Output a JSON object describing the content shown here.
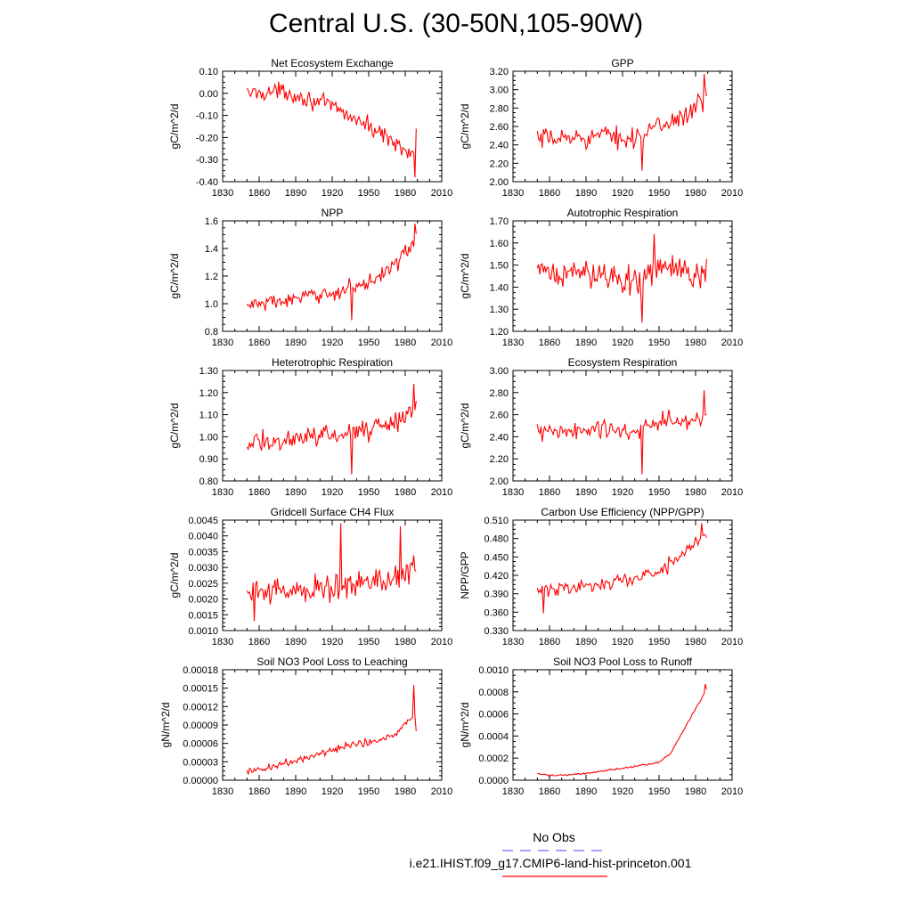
{
  "title": "Central U.S. (30-50N,105-90W)",
  "colors": {
    "model": "#ff0000",
    "obs": "#6b6bff",
    "axis": "#000000"
  },
  "legend": {
    "obs_label": "No Obs",
    "model_label": "i.e21.IHIST.f09_g17.CMIP6-land-hist-princeton.001"
  },
  "x_axis": {
    "range": [
      1830,
      2010
    ],
    "ticks": [
      "1830",
      "1860",
      "1890",
      "1920",
      "1950",
      "1980",
      "2010"
    ],
    "data_start": 1850,
    "data_end": 1989
  },
  "chart_data": [
    {
      "id": "nee",
      "type": "line",
      "title": "Net Ecosystem Exchange",
      "ylabel": "gC/m^2/d",
      "ylim": [
        -0.4,
        0.1
      ],
      "yticks": [
        "-0.40",
        "-0.30",
        "-0.20",
        "-0.10",
        "0.00",
        "0.10"
      ],
      "trend": [
        [
          1850,
          0.0
        ],
        [
          1880,
          0.01
        ],
        [
          1920,
          -0.06
        ],
        [
          1950,
          -0.15
        ],
        [
          1975,
          -0.23
        ],
        [
          1989,
          -0.3
        ]
      ],
      "amplitude": 0.04,
      "extremes": [
        [
          1988,
          -0.38
        ],
        [
          1989,
          -0.16
        ]
      ]
    },
    {
      "id": "gpp",
      "type": "line",
      "title": "GPP",
      "ylabel": "gC/m^2/d",
      "ylim": [
        2.0,
        3.2
      ],
      "yticks": [
        "2.00",
        "2.20",
        "2.40",
        "2.60",
        "2.80",
        "3.00",
        "3.20"
      ],
      "trend": [
        [
          1850,
          2.45
        ],
        [
          1900,
          2.5
        ],
        [
          1930,
          2.48
        ],
        [
          1950,
          2.6
        ],
        [
          1975,
          2.75
        ],
        [
          1989,
          2.9
        ]
      ],
      "amplitude": 0.12,
      "extremes": [
        [
          1936,
          2.12
        ],
        [
          1987,
          3.17
        ]
      ]
    },
    {
      "id": "npp",
      "type": "line",
      "title": "NPP",
      "ylabel": "gC/m^2/d",
      "ylim": [
        0.8,
        1.6
      ],
      "yticks": [
        "0.8",
        "1.0",
        "1.2",
        "1.4",
        "1.6"
      ],
      "trend": [
        [
          1850,
          0.99
        ],
        [
          1890,
          1.03
        ],
        [
          1920,
          1.08
        ],
        [
          1950,
          1.15
        ],
        [
          1975,
          1.32
        ],
        [
          1989,
          1.45
        ]
      ],
      "amplitude": 0.06,
      "extremes": [
        [
          1936,
          0.88
        ],
        [
          1988,
          1.58
        ]
      ]
    },
    {
      "id": "ar",
      "type": "line",
      "title": "Autotrophic Respiration",
      "ylabel": "gC/m^2/d",
      "ylim": [
        1.2,
        1.7
      ],
      "yticks": [
        "1.20",
        "1.30",
        "1.40",
        "1.50",
        "1.60",
        "1.70"
      ],
      "trend": [
        [
          1850,
          1.46
        ],
        [
          1900,
          1.46
        ],
        [
          1935,
          1.43
        ],
        [
          1950,
          1.5
        ],
        [
          1975,
          1.45
        ],
        [
          1989,
          1.48
        ]
      ],
      "amplitude": 0.07,
      "extremes": [
        [
          1936,
          1.24
        ],
        [
          1946,
          1.64
        ]
      ]
    },
    {
      "id": "hr",
      "type": "line",
      "title": "Heterotrophic Respiration",
      "ylabel": "gC/m^2/d",
      "ylim": [
        0.8,
        1.3
      ],
      "yticks": [
        "0.80",
        "0.90",
        "1.00",
        "1.10",
        "1.20",
        "1.30"
      ],
      "trend": [
        [
          1850,
          0.97
        ],
        [
          1890,
          0.99
        ],
        [
          1920,
          1.01
        ],
        [
          1950,
          1.03
        ],
        [
          1975,
          1.08
        ],
        [
          1989,
          1.14
        ]
      ],
      "amplitude": 0.05,
      "extremes": [
        [
          1936,
          0.83
        ],
        [
          1987,
          1.24
        ]
      ]
    },
    {
      "id": "er",
      "type": "line",
      "title": "Ecosystem Respiration",
      "ylabel": "gC/m^2/d",
      "ylim": [
        2.0,
        3.0
      ],
      "yticks": [
        "2.00",
        "2.20",
        "2.40",
        "2.60",
        "2.80",
        "3.00"
      ],
      "trend": [
        [
          1850,
          2.43
        ],
        [
          1900,
          2.46
        ],
        [
          1930,
          2.45
        ],
        [
          1950,
          2.52
        ],
        [
          1975,
          2.55
        ],
        [
          1989,
          2.58
        ]
      ],
      "amplitude": 0.1,
      "extremes": [
        [
          1936,
          2.06
        ],
        [
          1987,
          2.82
        ]
      ]
    },
    {
      "id": "ch4",
      "type": "line",
      "title": "Gridcell Surface CH4 Flux",
      "ylabel": "gC/m^2/d",
      "ylim": [
        0.001,
        0.0045
      ],
      "yticks": [
        "0.0010",
        "0.0015",
        "0.0020",
        "0.0025",
        "0.0030",
        "0.0035",
        "0.0040",
        "0.0045"
      ],
      "trend": [
        [
          1850,
          0.0022
        ],
        [
          1900,
          0.0023
        ],
        [
          1930,
          0.0024
        ],
        [
          1960,
          0.0026
        ],
        [
          1989,
          0.003
        ]
      ],
      "amplitude": 0.00045,
      "extremes": [
        [
          1856,
          0.0013
        ],
        [
          1927,
          0.0044
        ],
        [
          1976,
          0.0043
        ]
      ]
    },
    {
      "id": "cue",
      "type": "line",
      "title": "Carbon Use Efficiency (NPP/GPP)",
      "ylabel": "NPP/GPP",
      "ylim": [
        0.33,
        0.51
      ],
      "yticks": [
        "0.330",
        "0.360",
        "0.390",
        "0.420",
        "0.450",
        "0.480",
        "0.510"
      ],
      "trend": [
        [
          1850,
          0.395
        ],
        [
          1900,
          0.405
        ],
        [
          1930,
          0.415
        ],
        [
          1950,
          0.425
        ],
        [
          1975,
          0.465
        ],
        [
          1989,
          0.485
        ]
      ],
      "amplitude": 0.012,
      "extremes": [
        [
          1855,
          0.358
        ],
        [
          1985,
          0.505
        ]
      ]
    },
    {
      "id": "leach",
      "type": "line",
      "title": "Soil NO3 Pool Loss to Leaching",
      "ylabel": "gN/m^2/d",
      "ylim": [
        0.0,
        0.00018
      ],
      "yticks": [
        "0.00000",
        "0.00003",
        "0.00006",
        "0.00009",
        "0.00012",
        "0.00015",
        "0.00018"
      ],
      "trend": [
        [
          1850,
          1.2e-05
        ],
        [
          1870,
          2.2e-05
        ],
        [
          1900,
          3.8e-05
        ],
        [
          1930,
          5.5e-05
        ],
        [
          1960,
          6.5e-05
        ],
        [
          1975,
          8e-05
        ],
        [
          1989,
          0.00011
        ]
      ],
      "amplitude": 8e-06,
      "extremes": [
        [
          1987,
          0.000155
        ],
        [
          1989,
          8e-05
        ]
      ]
    },
    {
      "id": "runoff",
      "type": "line",
      "title": "Soil NO3 Pool Loss to Runoff",
      "ylabel": "gN/m^2/d",
      "ylim": [
        0.0,
        0.001
      ],
      "yticks": [
        "0.0000",
        "0.0002",
        "0.0004",
        "0.0006",
        "0.0008",
        "0.0010"
      ],
      "trend": [
        [
          1850,
          6e-05
        ],
        [
          1860,
          4e-05
        ],
        [
          1890,
          6e-05
        ],
        [
          1920,
          0.00011
        ],
        [
          1950,
          0.00016
        ],
        [
          1960,
          0.00025
        ],
        [
          1970,
          0.00045
        ],
        [
          1980,
          0.00065
        ],
        [
          1989,
          0.00082
        ]
      ],
      "amplitude": 1.2e-05,
      "extremes": [
        [
          1988,
          0.00087
        ]
      ]
    }
  ]
}
